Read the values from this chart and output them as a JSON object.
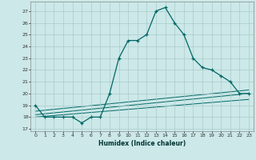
{
  "title": "",
  "xlabel": "Humidex (Indice chaleur)",
  "bg_color": "#cce8e8",
  "grid_color": "#aacccc",
  "line_color": "#006666",
  "xlim": [
    -0.5,
    23.5
  ],
  "ylim": [
    16.8,
    27.8
  ],
  "yticks": [
    17,
    18,
    19,
    20,
    21,
    22,
    23,
    24,
    25,
    26,
    27
  ],
  "xticks": [
    0,
    1,
    2,
    3,
    4,
    5,
    6,
    7,
    8,
    9,
    10,
    11,
    12,
    13,
    14,
    15,
    16,
    17,
    18,
    19,
    20,
    21,
    22,
    23
  ],
  "main_x": [
    0,
    1,
    2,
    3,
    4,
    5,
    6,
    7,
    8,
    9,
    10,
    11,
    12,
    13,
    14,
    15,
    16,
    17,
    18,
    19,
    20,
    21,
    22,
    23
  ],
  "main_y": [
    19.0,
    18.0,
    18.0,
    18.0,
    18.0,
    17.5,
    18.0,
    18.0,
    20.0,
    23.0,
    24.5,
    24.5,
    25.0,
    27.0,
    27.3,
    26.0,
    25.0,
    23.0,
    22.2,
    22.0,
    21.5,
    21.0,
    20.0,
    20.0
  ],
  "line1_x": [
    0,
    23
  ],
  "line1_y": [
    18.5,
    20.3
  ],
  "line2_x": [
    0,
    23
  ],
  "line2_y": [
    18.2,
    20.0
  ],
  "line3_x": [
    0,
    23
  ],
  "line3_y": [
    18.0,
    19.5
  ]
}
